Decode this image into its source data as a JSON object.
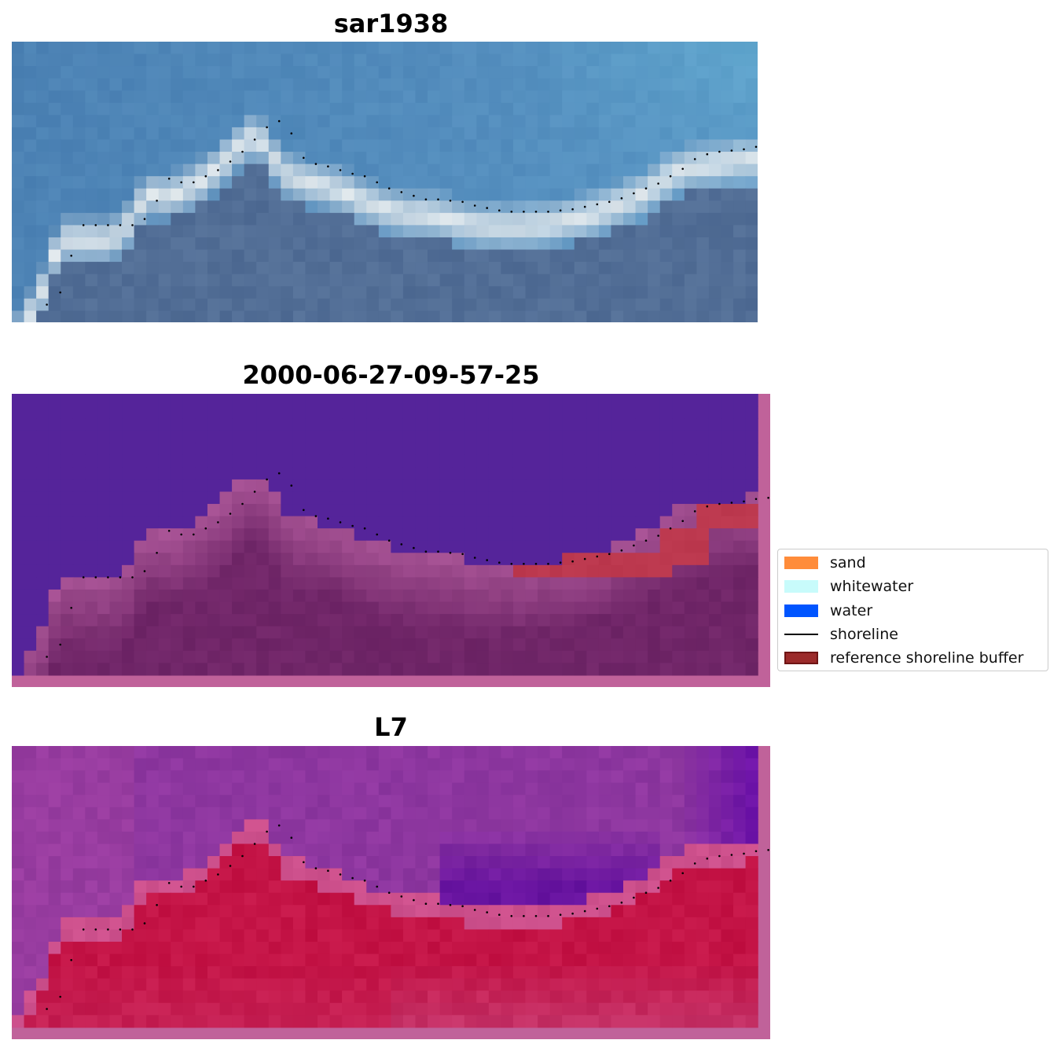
{
  "chart_data": {
    "type": "heatmap",
    "panels": [
      {
        "title": "sar1938",
        "kind": "rgb"
      },
      {
        "title": "2000-06-27-09-57-25",
        "kind": "classified"
      },
      {
        "title": "L7",
        "kind": "index"
      }
    ],
    "legend": {
      "placement": "right",
      "items": [
        {
          "label": "sand",
          "color": "#ff8c3a",
          "kind": "patch"
        },
        {
          "label": "whitewater",
          "color": "#c8fbfb",
          "kind": "patch"
        },
        {
          "label": "water",
          "color": "#0055ff",
          "kind": "patch"
        },
        {
          "label": "shoreline",
          "color": "#000000",
          "kind": "line"
        },
        {
          "label": "reference shoreline buffer",
          "color": "#9b2a2a",
          "kind": "patch"
        }
      ]
    },
    "shoreline": {
      "style": "dotted",
      "x": [
        1.0,
        2.1,
        3.0,
        4.0,
        5.0,
        6.0,
        7.0,
        8.0,
        9.0,
        10.0,
        11.0,
        12.0,
        13.0,
        14.0,
        15.0,
        16.0,
        17.0,
        18.0,
        19.0,
        20.0,
        21.0,
        22.0,
        23.0,
        24.0,
        25.0,
        26.0,
        27.0,
        28.0,
        29.0,
        30.0,
        31.0,
        32.0,
        33.0,
        34.0,
        35.0,
        36.0,
        37.0,
        38.0,
        39.0,
        40.0,
        41.0,
        42.0,
        43.0,
        44.0,
        45.0,
        46.0,
        47.0,
        48.0,
        49.0,
        50.0,
        51.0,
        52.0,
        53.0,
        54.0,
        55.0,
        56.0,
        57.0,
        58.0,
        59.0,
        60.0
      ],
      "y": [
        21.5,
        20.5,
        17.5,
        15.0,
        15.0,
        15.0,
        15.0,
        15.0,
        14.5,
        13.0,
        11.2,
        11.5,
        11.5,
        11.0,
        10.5,
        9.8,
        9.0,
        8.0,
        7.0,
        6.5,
        7.5,
        9.5,
        10.0,
        10.2,
        10.5,
        10.8,
        11.0,
        11.5,
        12.0,
        12.3,
        12.6,
        12.9,
        12.9,
        13.0,
        13.1,
        13.4,
        13.6,
        13.8,
        13.9,
        13.9,
        13.9,
        13.9,
        13.8,
        13.7,
        13.5,
        13.3,
        13.1,
        12.8,
        12.4,
        12.0,
        11.6,
        11.0,
        10.4,
        9.6,
        9.2,
        9.0,
        8.9,
        8.8,
        8.6,
        8.5
      ],
      "units": "pixel grid (col,row)"
    }
  }
}
